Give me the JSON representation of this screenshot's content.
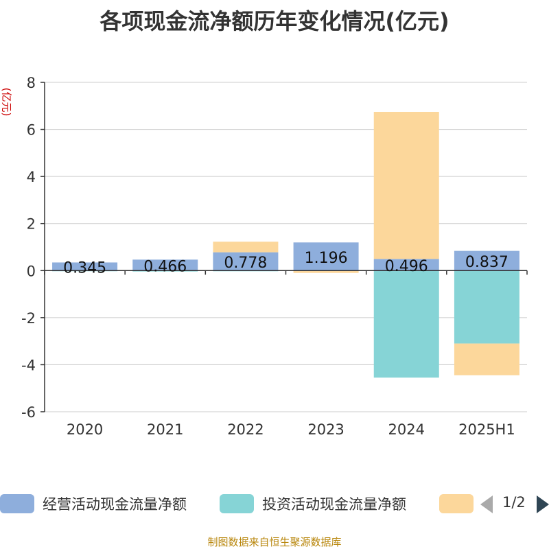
{
  "title": "各项现金流净额历年变化情况(亿元)",
  "unit_label": "(亿元)",
  "footer": "制图数据来自恒生聚源数据库",
  "legend": {
    "items": [
      "经营活动现金流量净额",
      "投资活动现金流量净额"
    ],
    "page": "1/2"
  },
  "colors": {
    "operating": "#8eaedc",
    "investing": "#86d4d6",
    "financing": "#fcd79b",
    "grid": "#cccccc",
    "axis": "#333333"
  },
  "chart_data": {
    "type": "bar",
    "stacked": true,
    "categories": [
      "2020",
      "2021",
      "2022",
      "2023",
      "2024",
      "2025H1"
    ],
    "ylim": [
      -6,
      8
    ],
    "yticks": [
      -6,
      -4,
      -2,
      0,
      2,
      4,
      6,
      8
    ],
    "grid": true,
    "series": [
      {
        "name": "经营活动现金流量净额",
        "values": [
          0.345,
          0.466,
          0.778,
          1.196,
          0.496,
          0.837
        ],
        "labels": [
          "0.345",
          "0.466",
          "0.778",
          "1.196",
          "0.496",
          "0.837"
        ]
      },
      {
        "name": "投资活动现金流量净额",
        "values": [
          -0.02,
          -0.04,
          -0.03,
          -0.02,
          -4.55,
          -3.1
        ]
      },
      {
        "name": "",
        "values": [
          0.0,
          0.0,
          0.45,
          -0.08,
          6.25,
          -1.35
        ]
      }
    ]
  }
}
